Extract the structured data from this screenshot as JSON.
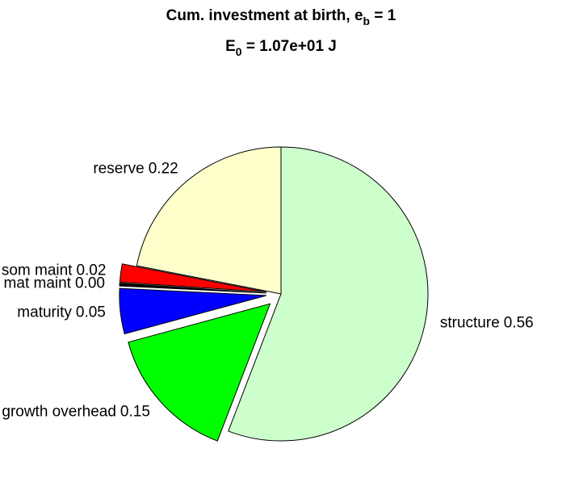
{
  "chart_data": {
    "type": "pie",
    "title": [
      "Cum. investment at birth, e",
      "b",
      " = 1"
    ],
    "subtitle": [
      "E",
      "0",
      " = 1.07e+01 J"
    ],
    "categories": [
      "structure",
      "growth overhead",
      "maturity",
      "mat maint",
      "som maint",
      "reserve"
    ],
    "values": [
      0.56,
      0.15,
      0.05,
      0.003,
      0.02,
      0.22
    ],
    "value_labels": [
      "0.56",
      "0.15",
      "0.05",
      "0.00",
      "0.02",
      "0.22"
    ],
    "colors": [
      "#ccffcc",
      "#00ff00",
      "#0000ff",
      "#000000",
      "#ff0000",
      "#ffffcc"
    ],
    "explode": [
      false,
      true,
      true,
      true,
      true,
      false
    ]
  }
}
